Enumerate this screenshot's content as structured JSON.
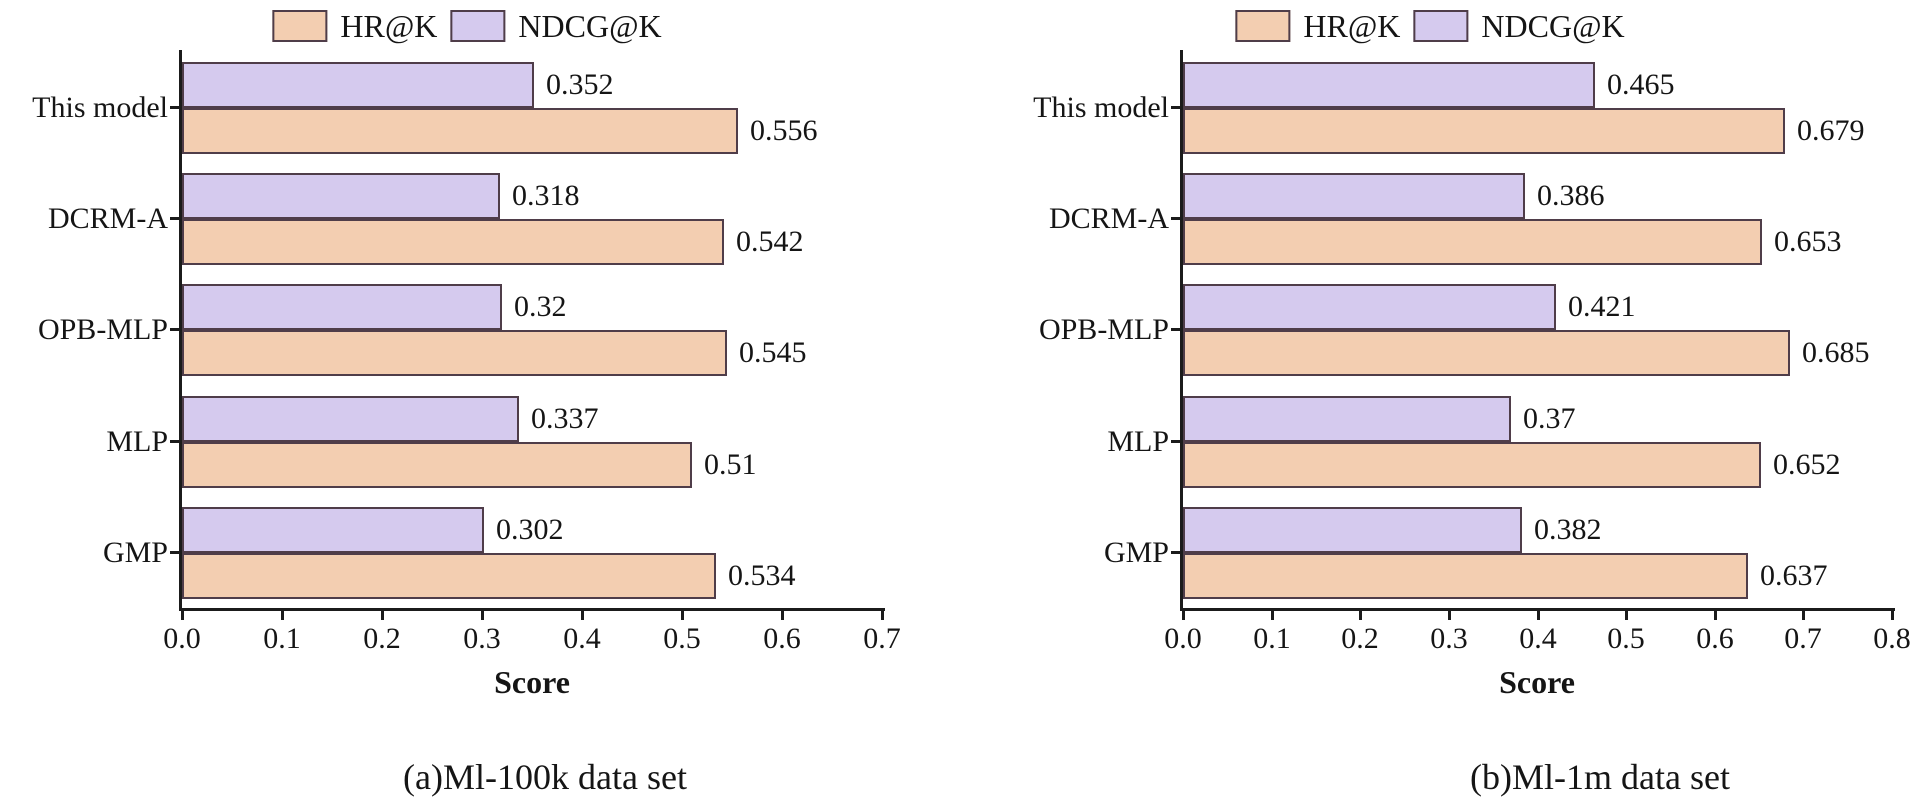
{
  "figure": {
    "background": "#ffffff",
    "colors": {
      "hr_fill": "#f3ceb1",
      "ndcg_fill": "#d5caee",
      "bar_edge": "#4f3d49",
      "axis": "#1b1b1b",
      "text": "#151515"
    }
  },
  "chart_data": [
    {
      "type": "bar",
      "orientation": "horizontal",
      "title": "(a)Ml-100k data set",
      "xlabel": "Score",
      "xlim": [
        0.0,
        0.7
      ],
      "xtick_values": [
        0.0,
        0.1,
        0.2,
        0.3,
        0.4,
        0.5,
        0.6,
        0.7
      ],
      "xtick_labels": [
        "0.0",
        "0.1",
        "0.2",
        "0.3",
        "0.4",
        "0.5",
        "0.6",
        "0.7"
      ],
      "grid": false,
      "legend_position": "top-center",
      "categories": [
        "This model",
        "DCRM-A",
        "OPB-MLP",
        "MLP",
        "GMP"
      ],
      "series": [
        {
          "name": "NDCG@K",
          "values": [
            0.352,
            0.318,
            0.32,
            0.337,
            0.302
          ],
          "value_labels": [
            "0.352",
            "0.318",
            "0.32",
            "0.337",
            "0.302"
          ]
        },
        {
          "name": "HR@K",
          "values": [
            0.556,
            0.542,
            0.545,
            0.51,
            0.534
          ],
          "value_labels": [
            "0.556",
            "0.542",
            "0.545",
            "0.51",
            "0.534"
          ]
        }
      ]
    },
    {
      "type": "bar",
      "orientation": "horizontal",
      "title": "(b)Ml-1m data set",
      "xlabel": "Score",
      "xlim": [
        0.0,
        0.8
      ],
      "xtick_values": [
        0.0,
        0.1,
        0.2,
        0.3,
        0.4,
        0.5,
        0.6,
        0.7,
        0.8
      ],
      "xtick_labels": [
        "0.0",
        "0.1",
        "0.2",
        "0.3",
        "0.4",
        "0.5",
        "0.6",
        "0.7",
        "0.8"
      ],
      "grid": false,
      "legend_position": "top-center",
      "categories": [
        "This model",
        "DCRM-A",
        "OPB-MLP",
        "MLP",
        "GMP"
      ],
      "series": [
        {
          "name": "NDCG@K",
          "values": [
            0.465,
            0.386,
            0.421,
            0.37,
            0.382
          ],
          "value_labels": [
            "0.465",
            "0.386",
            "0.421",
            "0.37",
            "0.382"
          ]
        },
        {
          "name": "HR@K",
          "values": [
            0.679,
            0.653,
            0.685,
            0.652,
            0.637
          ],
          "value_labels": [
            "0.679",
            "0.653",
            "0.685",
            "0.652",
            "0.637"
          ]
        }
      ]
    }
  ]
}
